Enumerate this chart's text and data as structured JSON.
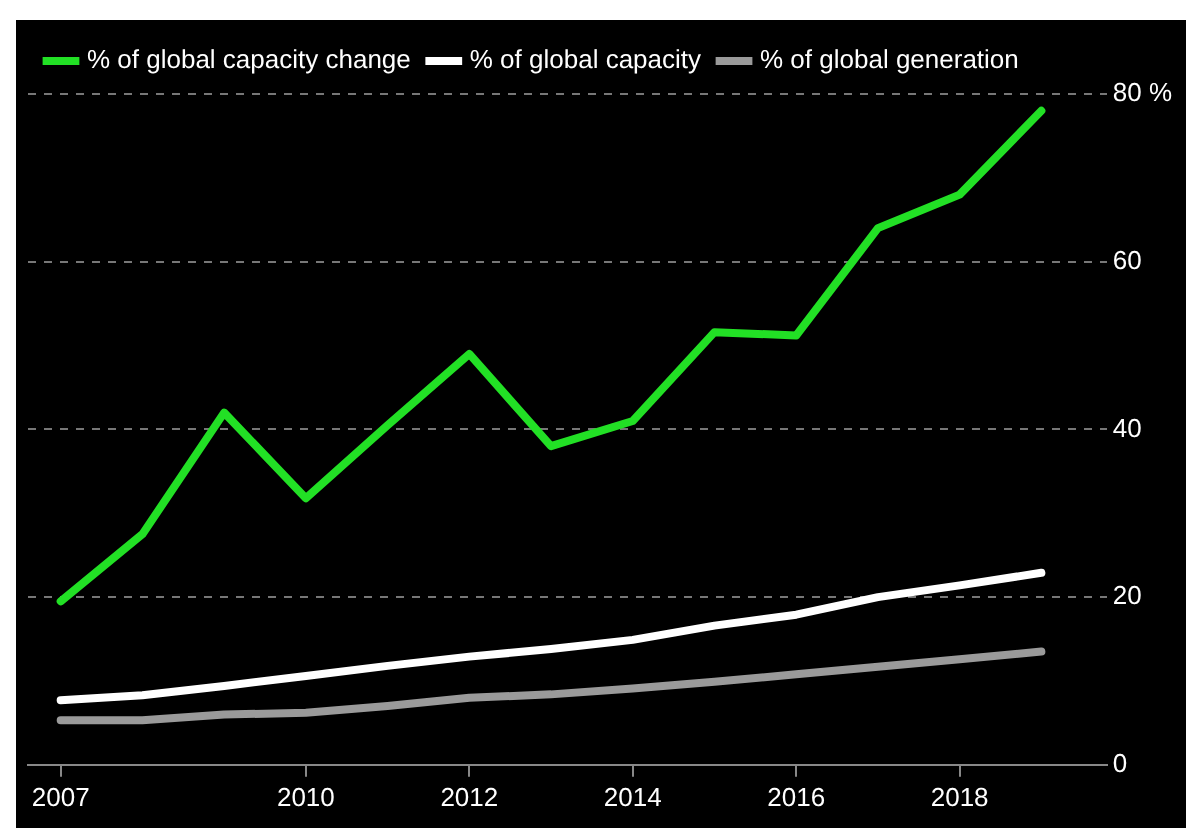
{
  "chart_data": {
    "type": "line",
    "x": [
      2007,
      2008,
      2009,
      2010,
      2011,
      2012,
      2013,
      2014,
      2015,
      2016,
      2017,
      2018,
      2019
    ],
    "series": [
      {
        "name": "% of global capacity change",
        "color": "#22e025",
        "values": [
          19.5,
          27.5,
          42,
          31.8,
          40.5,
          49,
          38,
          41,
          51.6,
          51.2,
          64,
          68,
          78
        ]
      },
      {
        "name": "% of global capacity",
        "color": "#ffffff",
        "values": [
          7.7,
          8.3,
          9.4,
          10.6,
          11.8,
          12.9,
          13.8,
          14.9,
          16.6,
          17.9,
          20,
          21.4,
          22.9
        ]
      },
      {
        "name": "% of global generation",
        "color": "#9a9a9a",
        "values": [
          5.3,
          5.3,
          6,
          6.2,
          7,
          8,
          8.4,
          9.1,
          9.9,
          10.8,
          11.7,
          12.6,
          13.5
        ]
      }
    ],
    "xlim": [
      2006.6,
      2019.8
    ],
    "xticks": [
      2007,
      2010,
      2012,
      2014,
      2016,
      2018
    ],
    "ylim": [
      0,
      80
    ],
    "yticks": [
      0,
      20,
      40,
      60,
      {
        "value": 80,
        "label": "80 %"
      }
    ],
    "grid": "y",
    "legend": "top left",
    "marker": "none",
    "line_style": "solid"
  }
}
